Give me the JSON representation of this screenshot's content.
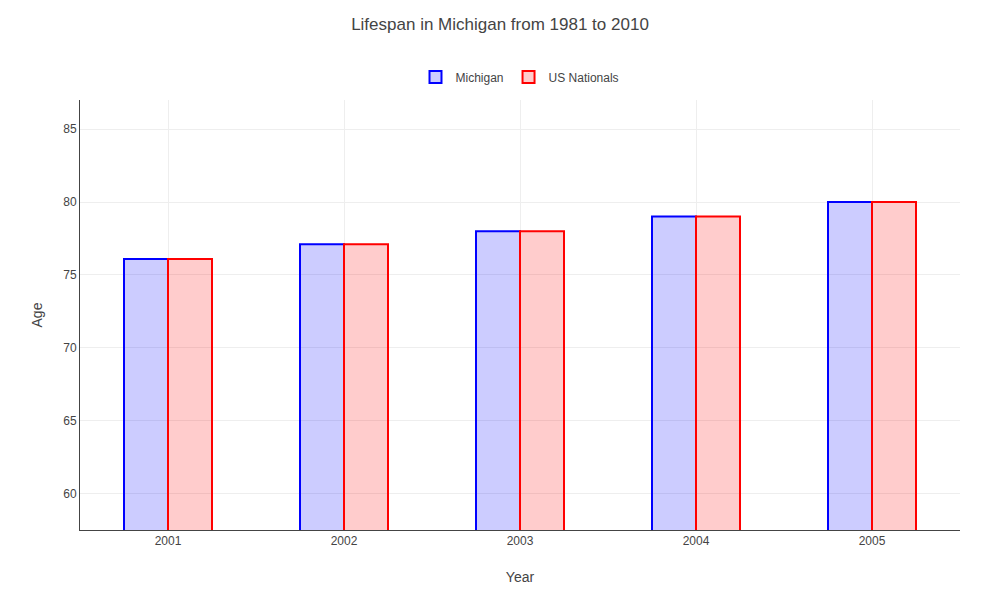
{
  "chart_data": {
    "type": "bar",
    "title": "Lifespan in Michigan from 1981 to 2010",
    "xlabel": "Year",
    "ylabel": "Age",
    "categories": [
      "2001",
      "2002",
      "2003",
      "2004",
      "2005"
    ],
    "series": [
      {
        "name": "Michigan",
        "color": "#0000ff",
        "values": [
          76.1,
          77.1,
          78.0,
          79.0,
          80.0
        ]
      },
      {
        "name": "US Nationals",
        "color": "#ff0000",
        "values": [
          76.1,
          77.1,
          78.0,
          79.0,
          80.0
        ]
      }
    ],
    "ylim": [
      57.5,
      87
    ],
    "yticks": [
      60,
      65,
      70,
      75,
      80,
      85
    ],
    "grid": true,
    "legend": "top"
  }
}
